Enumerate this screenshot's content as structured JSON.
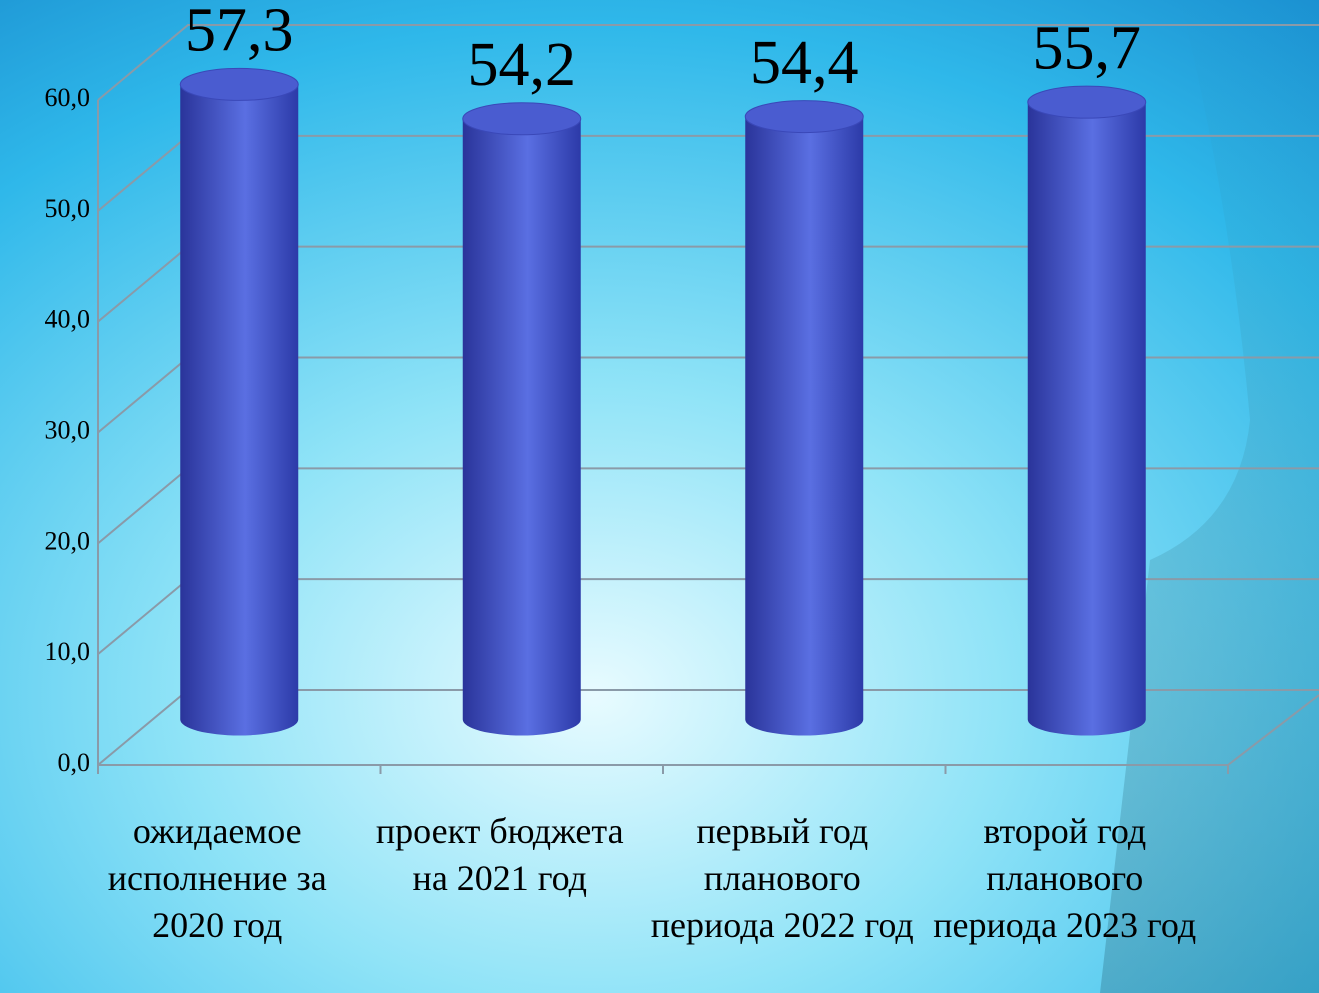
{
  "chart_data": {
    "type": "bar3d",
    "categories": [
      "ожидаемое исполнение за 2020 год",
      "проект бюджета на 2021 год",
      "первый год планового периода 2022 год",
      "второй год планового периода 2023 год"
    ],
    "values": [
      57.3,
      54.2,
      54.4,
      55.7
    ],
    "value_labels": [
      "57,3",
      "54,2",
      "54,4",
      "55,7"
    ],
    "color": "#4a5cd0",
    "ylim": [
      0,
      60
    ],
    "yticks": [
      {
        "value": 0,
        "label": "0,0"
      },
      {
        "value": 10,
        "label": "10,0"
      },
      {
        "value": 20,
        "label": "20,0"
      },
      {
        "value": 30,
        "label": "30,0"
      },
      {
        "value": 40,
        "label": "40,0"
      },
      {
        "value": 50,
        "label": "50,0"
      },
      {
        "value": 60,
        "label": "60,0"
      }
    ],
    "grid": true
  }
}
